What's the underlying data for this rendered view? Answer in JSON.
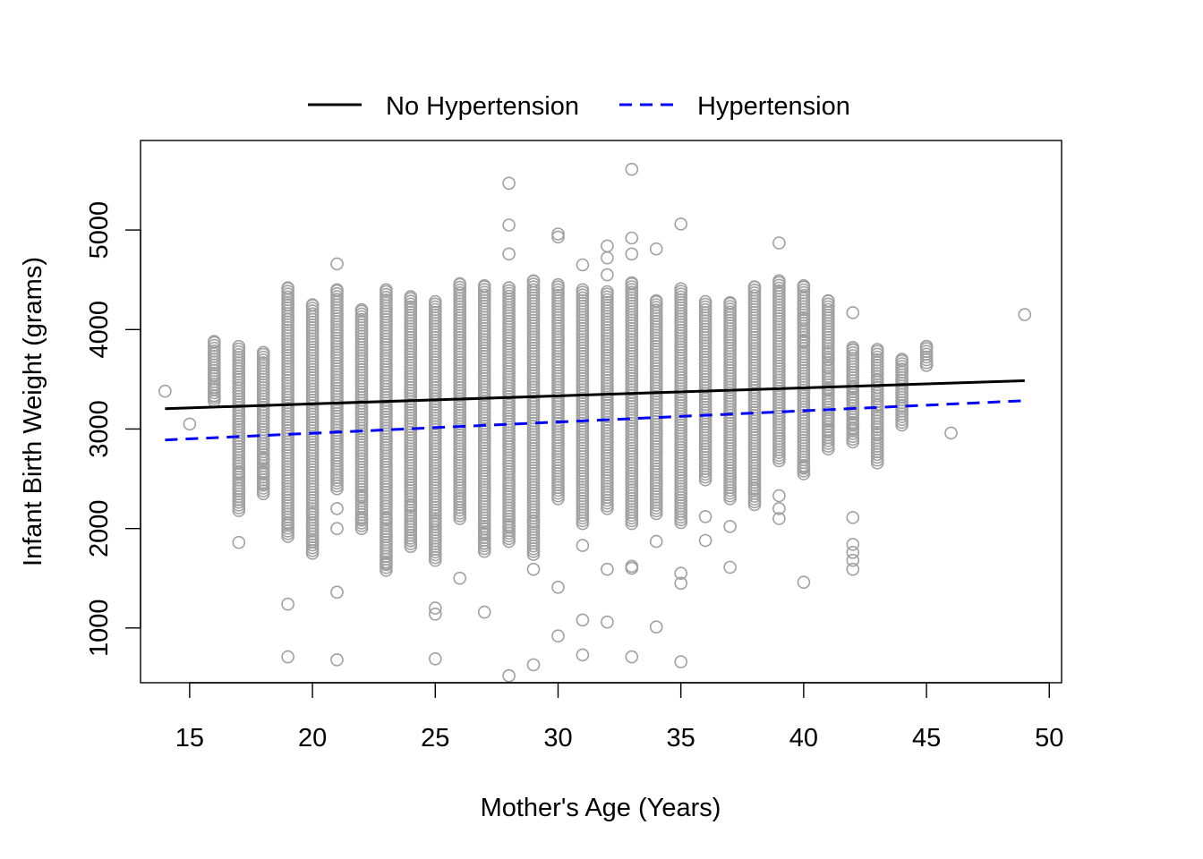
{
  "chart_data": {
    "type": "scatter",
    "title": "",
    "xlabel": "Mother's Age (Years)",
    "ylabel": "Infant Birth Weight (grams)",
    "xlim": [
      13,
      50.5
    ],
    "ylim": [
      450,
      5900
    ],
    "x_ticks": [
      15,
      20,
      25,
      30,
      35,
      40,
      45,
      50
    ],
    "y_ticks": [
      1000,
      2000,
      3000,
      4000,
      5000
    ],
    "grid": false,
    "legend_position": "top-center",
    "point_color": "#a0a0a0",
    "scatter": {
      "columns": [
        {
          "x": 14,
          "min": 3380,
          "max": 3380,
          "extra": [
            3380
          ]
        },
        {
          "x": 15,
          "min": 3050,
          "max": 3050,
          "extra": [
            3050
          ]
        },
        {
          "x": 16,
          "min": 3280,
          "max": 3880,
          "extra": [
            3730,
            3540,
            3400,
            3330
          ]
        },
        {
          "x": 17,
          "min": 2180,
          "max": 3830,
          "extra": [
            1860,
            2680,
            2560,
            2400,
            2290,
            3500,
            3100,
            3020
          ]
        },
        {
          "x": 18,
          "min": 2350,
          "max": 3770,
          "extra": [
            2450,
            2560,
            2700,
            2850
          ]
        },
        {
          "x": 19,
          "min": 1920,
          "max": 4420,
          "extra": [
            710,
            1240,
            2050,
            4250,
            4100
          ]
        },
        {
          "x": 20,
          "min": 1750,
          "max": 4250,
          "extra": [
            1870,
            2000,
            2150
          ]
        },
        {
          "x": 21,
          "min": 2400,
          "max": 4400,
          "extra": [
            680,
            1360,
            4660,
            2000,
            2200
          ]
        },
        {
          "x": 22,
          "min": 2000,
          "max": 4200,
          "extra": [
            2100,
            2320
          ]
        },
        {
          "x": 23,
          "min": 1580,
          "max": 4400,
          "extra": [
            1650,
            1720,
            1920,
            2100
          ]
        },
        {
          "x": 24,
          "min": 1820,
          "max": 4330,
          "extra": [
            1880,
            2020,
            2230
          ]
        },
        {
          "x": 25,
          "min": 1680,
          "max": 4280,
          "extra": [
            690,
            1140,
            1200,
            2050,
            2080
          ]
        },
        {
          "x": 26,
          "min": 2100,
          "max": 4460,
          "extra": [
            1500,
            2270,
            2300
          ]
        },
        {
          "x": 27,
          "min": 1770,
          "max": 4440,
          "extra": [
            1160,
            1850,
            1950,
            2000
          ]
        },
        {
          "x": 28,
          "min": 1870,
          "max": 4420,
          "extra": [
            520,
            2020,
            4760,
            5050,
            5470
          ]
        },
        {
          "x": 29,
          "min": 1740,
          "max": 4490,
          "extra": [
            630,
            1590,
            2070
          ]
        },
        {
          "x": 30,
          "min": 2300,
          "max": 4450,
          "extra": [
            920,
            1410,
            4930,
            4960
          ]
        },
        {
          "x": 31,
          "min": 2050,
          "max": 4400,
          "extra": [
            730,
            1080,
            1830,
            4650
          ]
        },
        {
          "x": 32,
          "min": 2200,
          "max": 4380,
          "extra": [
            1060,
            1590,
            4550,
            4720,
            4840
          ]
        },
        {
          "x": 33,
          "min": 2050,
          "max": 4470,
          "extra": [
            710,
            1600,
            1620,
            4760,
            4920,
            5610
          ]
        },
        {
          "x": 34,
          "min": 2150,
          "max": 4290,
          "extra": [
            1010,
            1870,
            4810
          ]
        },
        {
          "x": 35,
          "min": 2060,
          "max": 4410,
          "extra": [
            660,
            1450,
            1550,
            5060
          ]
        },
        {
          "x": 36,
          "min": 2490,
          "max": 4280,
          "extra": [
            1880,
            2120
          ]
        },
        {
          "x": 37,
          "min": 2300,
          "max": 4270,
          "extra": [
            1610,
            2020
          ]
        },
        {
          "x": 38,
          "min": 2240,
          "max": 4430,
          "extra": [
            2400
          ]
        },
        {
          "x": 39,
          "min": 2680,
          "max": 4490,
          "extra": [
            2100,
            2200,
            2330,
            4870
          ]
        },
        {
          "x": 40,
          "min": 2550,
          "max": 4440,
          "extra": [
            1460,
            2620,
            4200,
            4100,
            3880
          ]
        },
        {
          "x": 41,
          "min": 2800,
          "max": 4290,
          "extra": [
            2980,
            3100,
            3400,
            3620,
            3700,
            3760
          ]
        },
        {
          "x": 42,
          "min": 2870,
          "max": 3820,
          "extra": [
            1590,
            1680,
            1760,
            1840,
            2110,
            3000,
            3050,
            3170,
            3420,
            3800,
            4170
          ]
        },
        {
          "x": 43,
          "min": 2660,
          "max": 3800,
          "extra": [
            2950,
            3020,
            3240,
            3420,
            3490
          ]
        },
        {
          "x": 44,
          "min": 3040,
          "max": 3700,
          "extra": [
            3230,
            3490,
            3600
          ]
        },
        {
          "x": 45,
          "min": 3640,
          "max": 3830,
          "extra": [
            3640,
            3830
          ]
        },
        {
          "x": 46,
          "min": 2960,
          "max": 2960,
          "extra": [
            2960
          ]
        },
        {
          "x": 49,
          "min": 4150,
          "max": 4150,
          "extra": [
            4150
          ]
        }
      ]
    },
    "series": [
      {
        "name": "No Hypertension",
        "color": "#000000",
        "dash": "solid",
        "x": [
          14,
          49
        ],
        "y": [
          3205,
          3485
        ]
      },
      {
        "name": "Hypertension",
        "color": "#0000ff",
        "dash": "dashed",
        "x": [
          14,
          49
        ],
        "y": [
          2890,
          3285
        ]
      }
    ]
  }
}
